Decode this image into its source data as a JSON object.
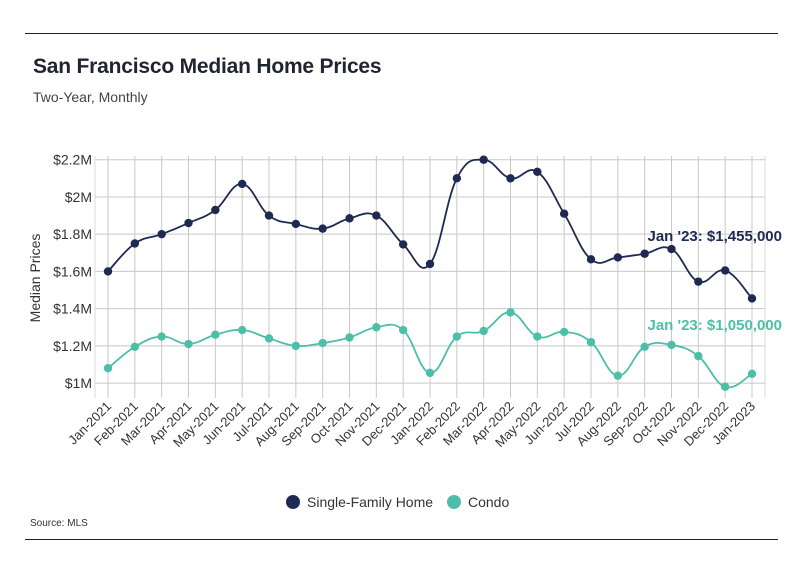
{
  "header": {
    "title": "San Francisco Median Home Prices",
    "subtitle": "Two-Year, Monthly"
  },
  "footer": {
    "source": "Source:  MLS"
  },
  "chart_data": {
    "type": "line",
    "title": "San Francisco Median Home Prices",
    "subtitle": "Two-Year, Monthly",
    "xlabel": "",
    "ylabel": "Median Prices",
    "ylim": [
      0.92,
      2.22
    ],
    "y_ticks": [
      1.0,
      1.2,
      1.4,
      1.6,
      1.8,
      2.0,
      2.2
    ],
    "y_tick_labels": [
      "$1M",
      "$1.2M",
      "$1.4M",
      "$1.6M",
      "$1.8M",
      "$2M",
      "$2.2M"
    ],
    "grid": true,
    "legend_position": "bottom-center",
    "categories": [
      "Jan-2021",
      "Feb-2021",
      "Mar-2021",
      "Apr-2021",
      "May-2021",
      "Jun-2021",
      "Jul-2021",
      "Aug-2021",
      "Sep-2021",
      "Oct-2021",
      "Nov-2021",
      "Dec-2021",
      "Jan-2022",
      "Feb-2022",
      "Mar-2022",
      "Apr-2022",
      "May-2022",
      "Jun-2022",
      "Jul-2022",
      "Aug-2022",
      "Sep-2022",
      "Oct-2022",
      "Nov-2022",
      "Dec-2022",
      "Jan-2023"
    ],
    "series": [
      {
        "name": "Single-Family Home",
        "color": "#1e2a52",
        "values": [
          1.6,
          1.75,
          1.8,
          1.86,
          1.93,
          2.07,
          1.9,
          1.855,
          1.83,
          1.885,
          1.9,
          1.745,
          1.64,
          2.1,
          2.2,
          2.1,
          2.135,
          1.91,
          1.665,
          1.675,
          1.695,
          1.72,
          1.545,
          1.605,
          1.455
        ]
      },
      {
        "name": "Condo",
        "color": "#4dbfa8",
        "values": [
          1.08,
          1.195,
          1.25,
          1.21,
          1.26,
          1.285,
          1.24,
          1.2,
          1.215,
          1.245,
          1.3,
          1.285,
          1.055,
          1.25,
          1.28,
          1.38,
          1.25,
          1.275,
          1.22,
          1.04,
          1.195,
          1.205,
          1.145,
          0.98,
          1.05
        ]
      }
    ],
    "annotations": [
      {
        "text": "Jan '23: $1,455,000",
        "series": "Single-Family Home",
        "color": "#1e2a52"
      },
      {
        "text": "Jan '23: $1,050,000",
        "series": "Condo",
        "color": "#4dbfa8"
      }
    ]
  }
}
